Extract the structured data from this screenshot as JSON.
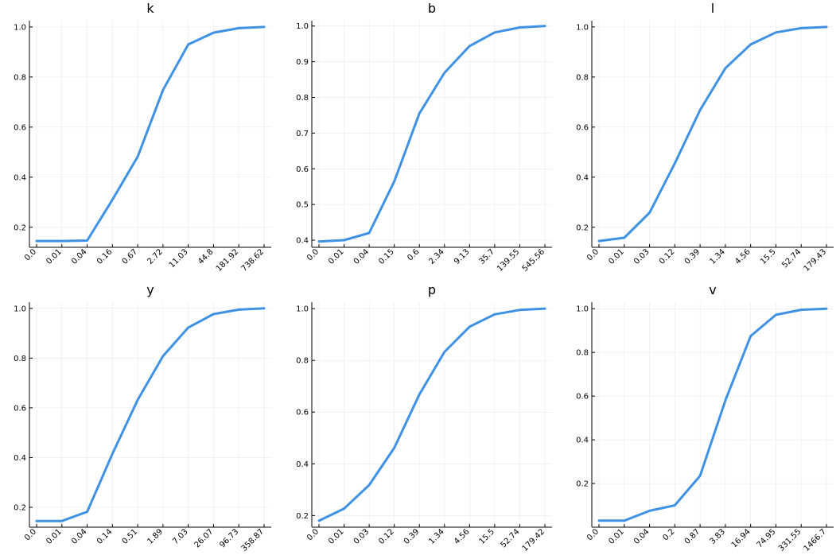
{
  "chart_data": [
    {
      "type": "line",
      "title": "k",
      "categories": [
        "0.0",
        "0.01",
        "0.04",
        "0.16",
        "0.67",
        "2.72",
        "11.03",
        "44.8",
        "181.92",
        "738.62"
      ],
      "series": [
        {
          "values": [
            0.145,
            0.145,
            0.147,
            0.31,
            0.482,
            0.748,
            0.93,
            0.977,
            0.995,
            1.0
          ],
          "color": "#3f92e3"
        }
      ],
      "yticks": [
        "0.2",
        "0.4",
        "0.6",
        "0.8",
        "1.0"
      ],
      "ylim": [
        0.12,
        1.025
      ],
      "grid": true
    },
    {
      "type": "line",
      "title": "b",
      "categories": [
        "0.0",
        "0.01",
        "0.04",
        "0.15",
        "0.6",
        "2.34",
        "9.13",
        "35.7",
        "139.55",
        "545.56"
      ],
      "series": [
        {
          "values": [
            0.396,
            0.4,
            0.42,
            0.565,
            0.755,
            0.869,
            0.944,
            0.982,
            0.996,
            1.0
          ],
          "color": "#3f92e3"
        }
      ],
      "yticks": [
        "0.4",
        "0.5",
        "0.6",
        "0.7",
        "0.8",
        "0.9",
        "1.0"
      ],
      "ylim": [
        0.38,
        1.015
      ],
      "grid": true
    },
    {
      "type": "line",
      "title": "l",
      "categories": [
        "0.0",
        "0.01",
        "0.03",
        "0.12",
        "0.39",
        "1.34",
        "4.56",
        "15.5",
        "52.74",
        "179.43"
      ],
      "series": [
        {
          "values": [
            0.145,
            0.158,
            0.258,
            0.455,
            0.668,
            0.835,
            0.93,
            0.978,
            0.995,
            1.0
          ],
          "color": "#3f92e3"
        }
      ],
      "yticks": [
        "0.2",
        "0.4",
        "0.6",
        "0.8",
        "1.0"
      ],
      "ylim": [
        0.12,
        1.025
      ],
      "grid": true
    },
    {
      "type": "line",
      "title": "y",
      "categories": [
        "0.0",
        "0.01",
        "0.04",
        "0.14",
        "0.51",
        "1.89",
        "7.03",
        "26.07",
        "96.73",
        "358.87"
      ],
      "series": [
        {
          "values": [
            0.145,
            0.145,
            0.182,
            0.415,
            0.632,
            0.808,
            0.923,
            0.977,
            0.995,
            1.0
          ],
          "color": "#3f92e3"
        }
      ],
      "yticks": [
        "0.2",
        "0.4",
        "0.6",
        "0.8",
        "1.0"
      ],
      "ylim": [
        0.12,
        1.025
      ],
      "grid": true
    },
    {
      "type": "line",
      "title": "p",
      "categories": [
        "0.0",
        "0.01",
        "0.03",
        "0.12",
        "0.39",
        "1.34",
        "4.56",
        "15.5",
        "52.74",
        "179.42"
      ],
      "series": [
        {
          "values": [
            0.18,
            0.227,
            0.318,
            0.462,
            0.668,
            0.833,
            0.93,
            0.978,
            0.995,
            1.0
          ],
          "color": "#3f92e3"
        }
      ],
      "yticks": [
        "0.2",
        "0.4",
        "0.6",
        "0.8",
        "1.0"
      ],
      "ylim": [
        0.155,
        1.025
      ],
      "grid": true
    },
    {
      "type": "line",
      "title": "v",
      "categories": [
        "0.0",
        "0.01",
        "0.04",
        "0.2",
        "0.87",
        "3.83",
        "16.94",
        "74.95",
        "331.55",
        "1466.7"
      ],
      "series": [
        {
          "values": [
            0.03,
            0.03,
            0.075,
            0.1,
            0.235,
            0.58,
            0.875,
            0.972,
            0.995,
            1.0
          ],
          "color": "#3f92e3"
        }
      ],
      "yticks": [
        "0.2",
        "0.4",
        "0.6",
        "0.8",
        "1.0"
      ],
      "ylim": [
        0.0,
        1.03
      ],
      "grid": true
    }
  ]
}
